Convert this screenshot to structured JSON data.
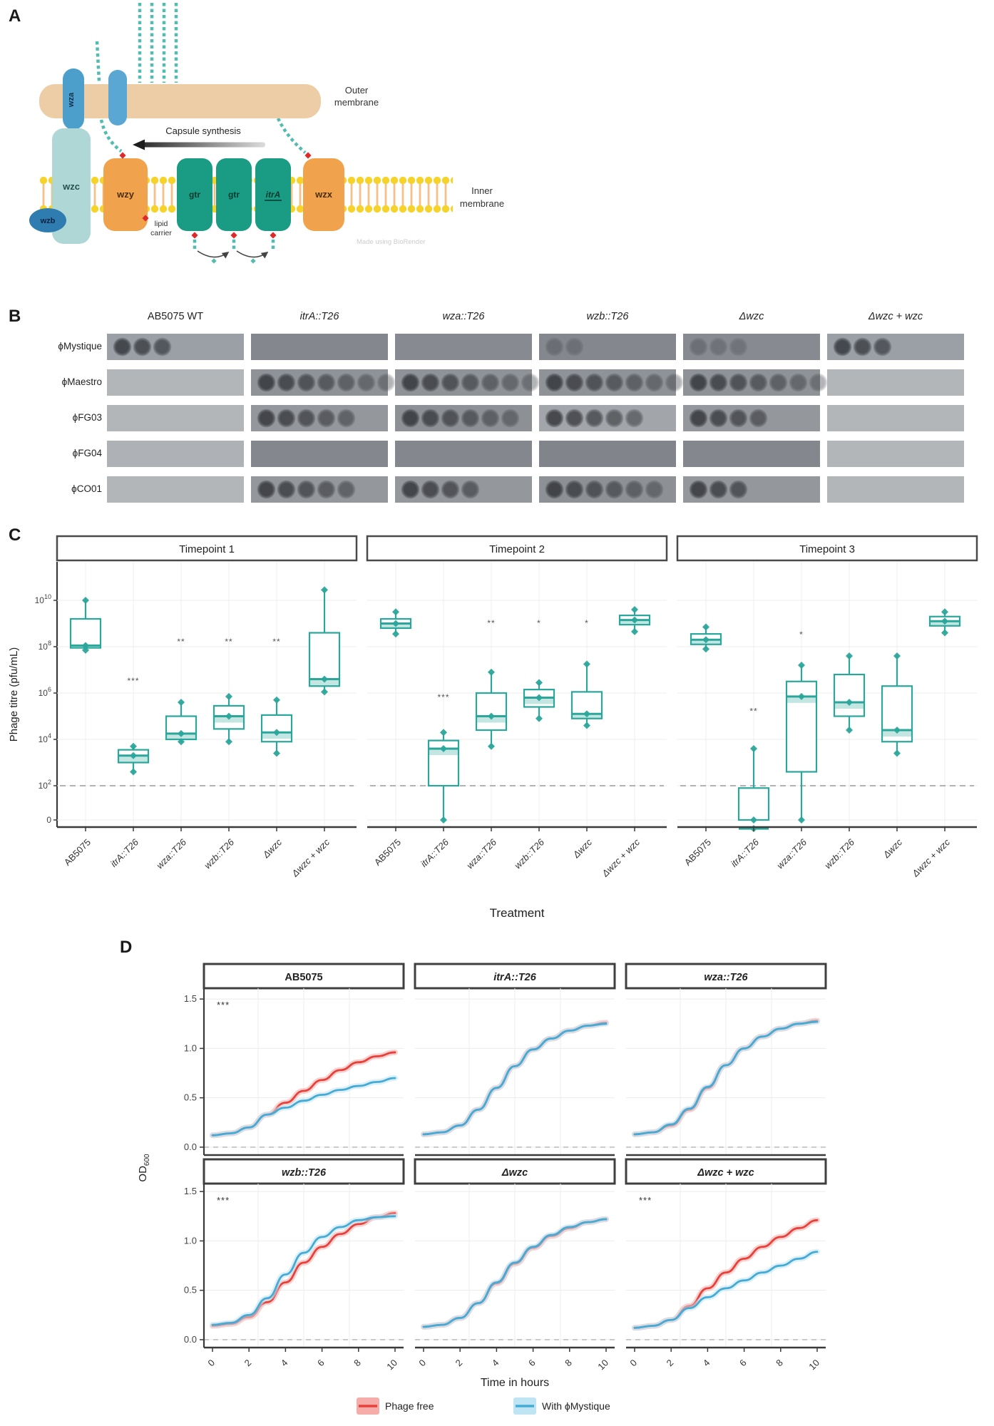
{
  "panelA": {
    "label": "A",
    "outer_membrane": [
      "Outer",
      "membrane"
    ],
    "inner_membrane": [
      "Inner",
      "membrane"
    ],
    "capsule_synthesis": "Capsule synthesis",
    "lipid_carrier": [
      "lipid",
      "carrier"
    ],
    "credit": "Made using BioRender",
    "proteins": {
      "wza": "wza",
      "wzb": "wzb",
      "wzc": "wzc",
      "wzy": "wzy",
      "gtr1": "gtr",
      "gtr2": "gtr",
      "itrA": "itrA",
      "wzx": "wzx"
    },
    "colors": {
      "outer_membrane": "#edcda6",
      "translocon_blue": "#4d9fcb",
      "wzb_blue": "#2e7cb0",
      "wzc_teal": "#aed7d6",
      "orange": "#f0a24d",
      "green": "#1a9c84",
      "chain_teal": "#53bcb1",
      "lipid_head_yellow": "#f6d32b",
      "carrier_red": "#e02a2a"
    }
  },
  "panelB": {
    "label": "B",
    "columns": [
      "AB5075 WT",
      "itrA::T26",
      "wza::T26",
      "wzb::T26",
      "Δwzc",
      "Δwzc + wzc"
    ],
    "rows": [
      {
        "phage": "ϕMystique",
        "cells": [
          {
            "bg": "#9aa0a6",
            "spots": 3,
            "faint": false
          },
          {
            "bg": "#84888e",
            "spots": 0,
            "faint": false
          },
          {
            "bg": "#878b91",
            "spots": 0,
            "faint": false
          },
          {
            "bg": "#84888e",
            "spots": 2,
            "faint": true
          },
          {
            "bg": "#878b91",
            "spots": 3,
            "faint": true
          },
          {
            "bg": "#9aa0a6",
            "spots": 3,
            "faint": false
          }
        ]
      },
      {
        "phage": "ϕMaestro",
        "cells": [
          {
            "bg": "#b3b6b9",
            "spots": 0,
            "faint": false
          },
          {
            "bg": "#8f9398",
            "spots": 7,
            "faint": false
          },
          {
            "bg": "#8f9398",
            "spots": 8,
            "faint": false
          },
          {
            "bg": "#8f9398",
            "spots": 8,
            "faint": false
          },
          {
            "bg": "#8f9398",
            "spots": 8,
            "faint": false
          },
          {
            "bg": "#b3b6b9",
            "spots": 0,
            "faint": false
          }
        ]
      },
      {
        "phage": "ϕFG03",
        "cells": [
          {
            "bg": "#b3b6b9",
            "spots": 0,
            "faint": false
          },
          {
            "bg": "#94979c",
            "spots": 5,
            "faint": false
          },
          {
            "bg": "#8d9196",
            "spots": 6,
            "faint": false
          },
          {
            "bg": "#a2a5a9",
            "spots": 5,
            "faint": false
          },
          {
            "bg": "#94979c",
            "spots": 4,
            "faint": false
          },
          {
            "bg": "#b3b6b9",
            "spots": 0,
            "faint": false
          }
        ]
      },
      {
        "phage": "ϕFG04",
        "cells": [
          {
            "bg": "#aeb1b5",
            "spots": 0,
            "faint": false
          },
          {
            "bg": "#84888e",
            "spots": 0,
            "faint": false
          },
          {
            "bg": "#84888e",
            "spots": 0,
            "faint": false
          },
          {
            "bg": "#81858b",
            "spots": 0,
            "faint": false
          },
          {
            "bg": "#84888e",
            "spots": 0,
            "faint": false
          },
          {
            "bg": "#b3b6b9",
            "spots": 0,
            "faint": false
          }
        ]
      },
      {
        "phage": "ϕCO01",
        "cells": [
          {
            "bg": "#b3b6b9",
            "spots": 0,
            "faint": false
          },
          {
            "bg": "#94979c",
            "spots": 5,
            "faint": false
          },
          {
            "bg": "#94979c",
            "spots": 4,
            "faint": false
          },
          {
            "bg": "#8d9196",
            "spots": 6,
            "faint": false
          },
          {
            "bg": "#94979c",
            "spots": 3,
            "faint": false
          },
          {
            "bg": "#b3b6b9",
            "spots": 0,
            "faint": false
          }
        ]
      }
    ]
  },
  "chart_data": [
    {
      "type": "box",
      "panel_label": "C",
      "facets": [
        "Timepoint 1",
        "Timepoint 2",
        "Timepoint 3"
      ],
      "categories": [
        "AB5075",
        "itrA::T26",
        "wza::T26",
        "wzb::T26",
        "Δwzc",
        "Δwzc + wzc"
      ],
      "ylabel": "Phage titre (pfu/mL)",
      "xlabel": "Treatment",
      "ytick_exponents": [
        10,
        8,
        6,
        4,
        2
      ],
      "ytick_zero": "0",
      "detection_limit_exponent": 2,
      "box_color": "#2aa79a",
      "boxes": [
        [
          {
            "lo": 7.85,
            "q1": 7.95,
            "med": 8.05,
            "q3": 9.2,
            "hi": 10.0,
            "sig": "",
            "sig_y": 0
          },
          {
            "lo": 2.6,
            "q1": 3.0,
            "med": 3.3,
            "q3": 3.55,
            "hi": 3.7,
            "sig": "***",
            "sig_y": 6.4
          },
          {
            "lo": 3.9,
            "q1": 4.0,
            "med": 4.25,
            "q3": 5.0,
            "hi": 5.6,
            "sig": "**",
            "sig_y": 8.1
          },
          {
            "lo": 3.9,
            "q1": 4.45,
            "med": 5.0,
            "q3": 5.45,
            "hi": 5.85,
            "sig": "**",
            "sig_y": 8.1
          },
          {
            "lo": 3.4,
            "q1": 3.9,
            "med": 4.3,
            "q3": 5.05,
            "hi": 5.7,
            "sig": "**",
            "sig_y": 8.1
          },
          {
            "lo": 6.05,
            "q1": 6.3,
            "med": 6.6,
            "q3": 8.6,
            "hi": 10.45,
            "sig": "",
            "sig_y": 0
          }
        ],
        [
          {
            "lo": 8.55,
            "q1": 8.8,
            "med": 9.0,
            "q3": 9.2,
            "hi": 9.5,
            "sig": "",
            "sig_y": 0
          },
          {
            "lo": 0,
            "q1": 2.0,
            "med": 3.6,
            "q3": 3.95,
            "hi": 4.3,
            "sig": "***",
            "sig_y": 5.7
          },
          {
            "lo": 3.7,
            "q1": 4.4,
            "med": 5.0,
            "q3": 6.0,
            "hi": 6.9,
            "sig": "**",
            "sig_y": 8.9
          },
          {
            "lo": 4.9,
            "q1": 5.4,
            "med": 5.8,
            "q3": 6.15,
            "hi": 6.45,
            "sig": "*",
            "sig_y": 8.9
          },
          {
            "lo": 4.6,
            "q1": 4.9,
            "med": 5.1,
            "q3": 6.05,
            "hi": 7.25,
            "sig": "*",
            "sig_y": 8.9
          },
          {
            "lo": 8.65,
            "q1": 8.95,
            "med": 9.15,
            "q3": 9.35,
            "hi": 9.6,
            "sig": "",
            "sig_y": 0
          }
        ],
        [
          {
            "lo": 7.9,
            "q1": 8.1,
            "med": 8.3,
            "q3": 8.55,
            "hi": 8.85,
            "sig": "",
            "sig_y": 0
          },
          {
            "lo": 0,
            "q1": 0,
            "med": 0.15,
            "q3": 1.9,
            "hi": 3.6,
            "sig": "**",
            "sig_y": 5.1
          },
          {
            "lo": 0,
            "q1": 2.6,
            "med": 5.85,
            "q3": 6.5,
            "hi": 7.2,
            "sig": "*",
            "sig_y": 8.4
          },
          {
            "lo": 4.4,
            "q1": 5.0,
            "med": 5.6,
            "q3": 6.8,
            "hi": 7.6,
            "sig": "",
            "sig_y": 0
          },
          {
            "lo": 3.4,
            "q1": 3.9,
            "med": 4.4,
            "q3": 6.3,
            "hi": 7.6,
            "sig": "",
            "sig_y": 0
          },
          {
            "lo": 8.6,
            "q1": 8.9,
            "med": 9.1,
            "q3": 9.3,
            "hi": 9.5,
            "sig": "",
            "sig_y": 0
          }
        ]
      ]
    },
    {
      "type": "line",
      "panel_label": "D",
      "xlabel": "Time in hours",
      "ylabel_main": "OD",
      "ylabel_sub": "600",
      "yticks": [
        "0.0",
        "0.5",
        "1.0",
        "1.5"
      ],
      "xticks": [
        0,
        2,
        4,
        6,
        8,
        10
      ],
      "x": [
        0,
        1,
        2,
        3,
        4,
        5,
        6,
        7,
        8,
        9,
        10
      ],
      "colors": {
        "phage_free": "#e8403a",
        "phage_free_ribbon": "#f6aca8",
        "with_phage": "#45abd5",
        "with_phage_ribbon": "#bfe4f4"
      },
      "legend": [
        {
          "key": "phage_free",
          "label": "Phage free"
        },
        {
          "key": "with_phage",
          "label": "With ϕMystique"
        }
      ],
      "facets": [
        {
          "title": "AB5075",
          "sig": "***",
          "phage_free": [
            0.12,
            0.14,
            0.2,
            0.33,
            0.45,
            0.57,
            0.68,
            0.78,
            0.86,
            0.92,
            0.96
          ],
          "with_phage": [
            0.12,
            0.14,
            0.2,
            0.33,
            0.4,
            0.47,
            0.53,
            0.58,
            0.62,
            0.66,
            0.7
          ]
        },
        {
          "title": "itrA::T26",
          "sig": "",
          "phage_free": [
            0.13,
            0.15,
            0.22,
            0.38,
            0.6,
            0.82,
            0.99,
            1.1,
            1.18,
            1.23,
            1.26
          ],
          "with_phage": [
            0.13,
            0.15,
            0.22,
            0.38,
            0.6,
            0.82,
            0.99,
            1.1,
            1.18,
            1.23,
            1.25
          ]
        },
        {
          "title": "wza::T26",
          "sig": "",
          "phage_free": [
            0.13,
            0.15,
            0.22,
            0.38,
            0.6,
            0.83,
            1.0,
            1.12,
            1.2,
            1.25,
            1.28
          ],
          "with_phage": [
            0.13,
            0.15,
            0.23,
            0.39,
            0.61,
            0.83,
            1.0,
            1.12,
            1.2,
            1.25,
            1.27
          ]
        },
        {
          "title": "wzb::T26",
          "sig": "***",
          "phage_free": [
            0.14,
            0.16,
            0.23,
            0.38,
            0.58,
            0.78,
            0.94,
            1.07,
            1.17,
            1.24,
            1.28
          ],
          "with_phage": [
            0.15,
            0.17,
            0.25,
            0.42,
            0.66,
            0.88,
            1.04,
            1.14,
            1.21,
            1.24,
            1.25
          ]
        },
        {
          "title": "Δwzc",
          "sig": "",
          "phage_free": [
            0.13,
            0.15,
            0.22,
            0.37,
            0.57,
            0.77,
            0.93,
            1.05,
            1.13,
            1.19,
            1.22
          ],
          "with_phage": [
            0.13,
            0.15,
            0.22,
            0.37,
            0.58,
            0.78,
            0.94,
            1.06,
            1.14,
            1.19,
            1.22
          ]
        },
        {
          "title": "Δwzc + wzc",
          "sig": "***",
          "phage_free": [
            0.12,
            0.14,
            0.2,
            0.34,
            0.52,
            0.68,
            0.82,
            0.94,
            1.04,
            1.13,
            1.21
          ],
          "with_phage": [
            0.12,
            0.14,
            0.2,
            0.32,
            0.43,
            0.52,
            0.6,
            0.68,
            0.75,
            0.82,
            0.89
          ]
        }
      ]
    }
  ]
}
